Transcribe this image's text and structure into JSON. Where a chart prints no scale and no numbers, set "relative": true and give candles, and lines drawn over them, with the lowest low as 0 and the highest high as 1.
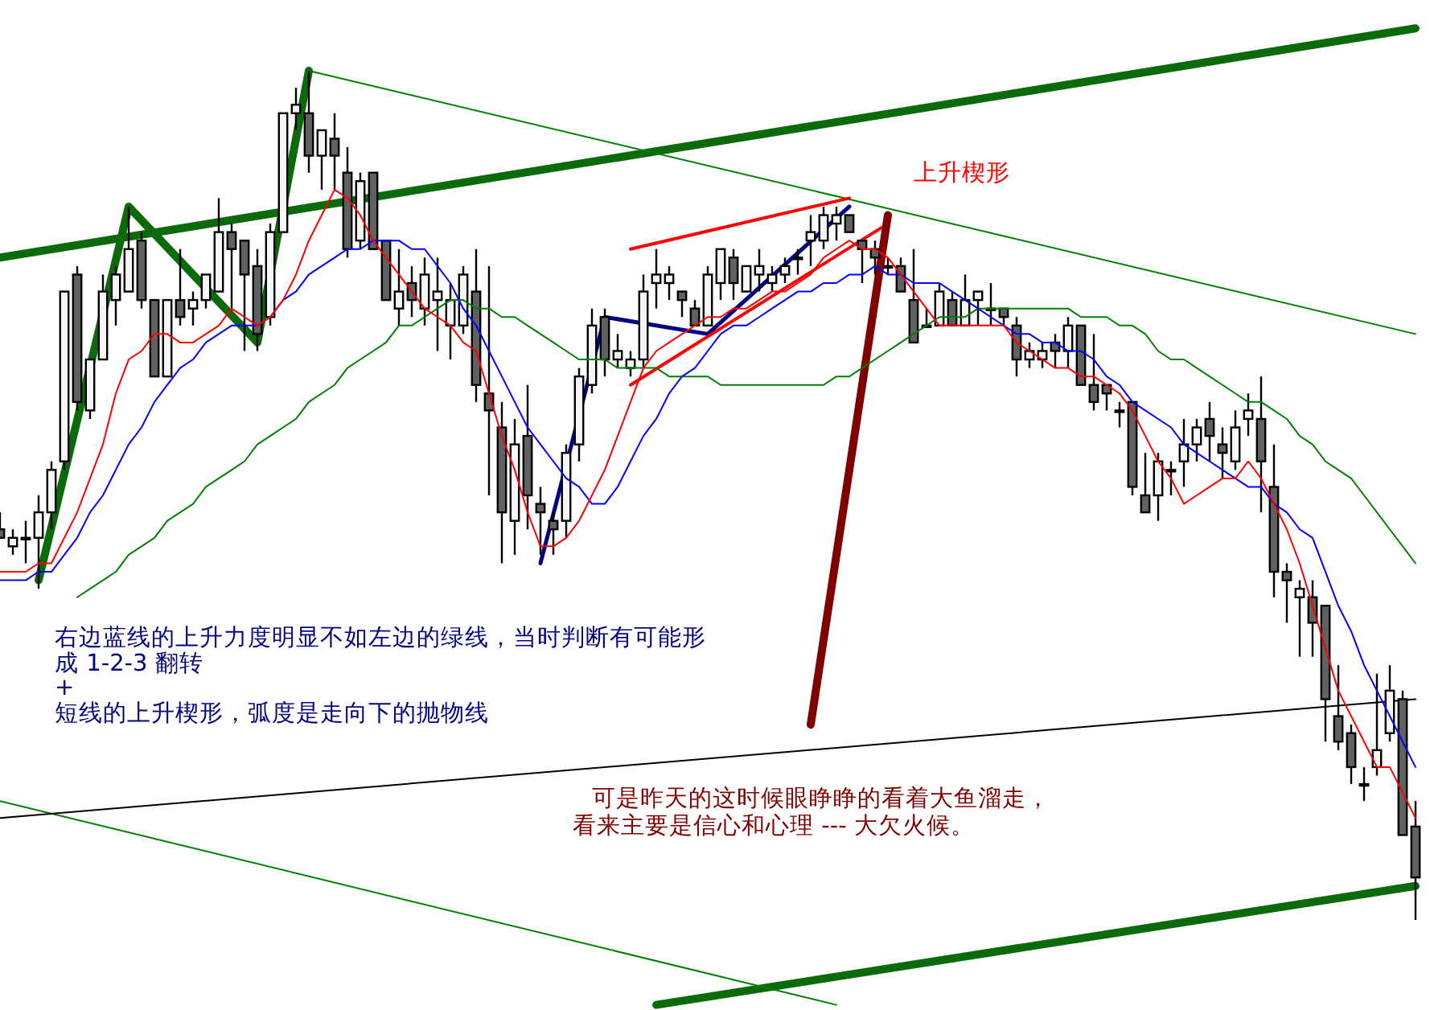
{
  "chart_data": {
    "type": "candlestick",
    "relative": true,
    "categories": [
      null,
      null,
      null,
      null,
      null,
      null,
      null,
      null,
      null,
      null,
      null,
      null,
      null,
      null,
      null,
      null,
      null,
      null,
      null,
      null,
      null,
      null,
      null,
      null,
      null,
      null,
      null,
      null,
      null,
      null,
      null,
      null,
      null,
      null,
      null,
      null,
      null,
      null,
      null,
      null,
      null,
      null,
      null,
      null,
      null,
      null,
      null,
      null,
      null,
      null,
      null,
      null,
      null,
      null,
      null,
      null,
      null,
      null,
      null,
      null,
      null,
      null,
      null,
      null,
      null,
      null,
      null,
      null,
      null,
      null,
      null,
      null,
      null,
      null,
      null,
      null,
      null,
      null,
      null,
      null,
      null,
      null,
      null,
      null,
      null,
      null,
      null,
      null,
      null,
      null,
      null,
      null,
      null,
      null,
      null,
      null,
      null,
      null,
      null,
      null,
      null,
      null,
      null,
      null,
      null,
      null,
      null,
      null,
      null,
      null,
      null
    ],
    "ohlc": [
      [
        0.46,
        0.48,
        0.45,
        0.45
      ],
      [
        0.44,
        0.46,
        0.43,
        0.45
      ],
      [
        0.45,
        0.47,
        0.42,
        0.45
      ],
      [
        0.45,
        0.5,
        0.39,
        0.48
      ],
      [
        0.48,
        0.54,
        0.46,
        0.53
      ],
      [
        0.54,
        0.74,
        0.53,
        0.74
      ],
      [
        0.76,
        0.77,
        0.6,
        0.61
      ],
      [
        0.6,
        0.66,
        0.59,
        0.66
      ],
      [
        0.66,
        0.76,
        0.66,
        0.74
      ],
      [
        0.73,
        0.77,
        0.7,
        0.76
      ],
      [
        0.74,
        0.84,
        0.74,
        0.79
      ],
      [
        0.8,
        0.81,
        0.72,
        0.73
      ],
      [
        0.73,
        0.73,
        0.64,
        0.64
      ],
      [
        0.64,
        0.73,
        0.64,
        0.73
      ],
      [
        0.73,
        0.79,
        0.7,
        0.71
      ],
      [
        0.72,
        0.74,
        0.7,
        0.73
      ],
      [
        0.73,
        0.76,
        0.72,
        0.76
      ],
      [
        0.74,
        0.85,
        0.74,
        0.81
      ],
      [
        0.81,
        0.82,
        0.72,
        0.79
      ],
      [
        0.8,
        0.8,
        0.67,
        0.76
      ],
      [
        0.77,
        0.79,
        0.67,
        0.69
      ],
      [
        0.71,
        0.82,
        0.7,
        0.81
      ],
      [
        0.81,
        0.95,
        0.81,
        0.95
      ],
      [
        0.95,
        0.98,
        0.93,
        0.96
      ],
      [
        0.95,
        1,
        0.88,
        0.9
      ],
      [
        0.9,
        0.93,
        0.86,
        0.93
      ],
      [
        0.92,
        0.95,
        0.86,
        0.9
      ],
      [
        0.88,
        0.91,
        0.78,
        0.79
      ],
      [
        0.8,
        0.88,
        0.79,
        0.87
      ],
      [
        0.88,
        0.88,
        0.79,
        0.79
      ],
      [
        0.8,
        0.8,
        0.73,
        0.73
      ],
      [
        0.72,
        0.79,
        0.7,
        0.74
      ],
      [
        0.75,
        0.77,
        0.71,
        0.73
      ],
      [
        0.72,
        0.78,
        0.7,
        0.76
      ],
      [
        0.73,
        0.78,
        0.67,
        0.74
      ],
      [
        0.7,
        0.75,
        0.66,
        0.73
      ],
      [
        0.7,
        0.77,
        0.69,
        0.76
      ],
      [
        0.74,
        0.79,
        0.61,
        0.63
      ],
      [
        0.62,
        0.77,
        0.5,
        0.6
      ],
      [
        0.58,
        0.61,
        0.42,
        0.48
      ],
      [
        0.47,
        0.59,
        0.43,
        0.56
      ],
      [
        0.57,
        0.63,
        0.46,
        0.5
      ],
      [
        0.49,
        0.51,
        0.43,
        0.48
      ],
      [
        0.47,
        0.48,
        0.43,
        0.46
      ],
      [
        0.47,
        0.56,
        0.45,
        0.55
      ],
      [
        0.56,
        0.65,
        0.54,
        0.64
      ],
      [
        0.63,
        0.72,
        0.62,
        0.7
      ],
      [
        0.71,
        0.72,
        0.64,
        0.66
      ],
      [
        0.66,
        0.69,
        0.65,
        0.67
      ],
      [
        0.65,
        0.67,
        0.64,
        0.66
      ],
      [
        0.66,
        0.76,
        0.65,
        0.74
      ],
      [
        0.75,
        0.79,
        0.72,
        0.76
      ],
      [
        0.75,
        0.77,
        0.73,
        0.76
      ],
      [
        0.74,
        0.74,
        0.71,
        0.73
      ],
      [
        0.72,
        0.73,
        0.7,
        0.7
      ],
      [
        0.7,
        0.77,
        0.7,
        0.76
      ],
      [
        0.75,
        0.79,
        0.73,
        0.79
      ],
      [
        0.78,
        0.79,
        0.73,
        0.75
      ],
      [
        0.74,
        0.77,
        0.74,
        0.77
      ],
      [
        0.76,
        0.79,
        0.74,
        0.77
      ],
      [
        0.75,
        0.77,
        0.74,
        0.76
      ],
      [
        0.76,
        0.78,
        0.75,
        0.77
      ],
      [
        0.78,
        0.79,
        0.76,
        0.78
      ],
      [
        0.8,
        0.83,
        0.77,
        0.81
      ],
      [
        0.8,
        0.84,
        0.79,
        0.83
      ],
      [
        0.82,
        0.84,
        0.8,
        0.83
      ],
      [
        0.83,
        0.83,
        0.81,
        0.81
      ],
      [
        0.8,
        0.8,
        0.75,
        0.79
      ],
      [
        0.79,
        0.8,
        0.76,
        0.78
      ],
      [
        0.77,
        0.78,
        0.76,
        0.77
      ],
      [
        0.77,
        0.78,
        0.74,
        0.74
      ],
      [
        0.73,
        0.79,
        0.68,
        0.68
      ],
      [
        0.7,
        0.72,
        0.7,
        0.7
      ],
      [
        0.7,
        0.75,
        0.7,
        0.74
      ],
      [
        0.73,
        0.74,
        0.7,
        0.7
      ],
      [
        0.7,
        0.76,
        0.7,
        0.73
      ],
      [
        0.73,
        0.74,
        0.7,
        0.74
      ],
      [
        0.72,
        0.75,
        0.7,
        0.72
      ],
      [
        0.72,
        0.72,
        0.7,
        0.71
      ],
      [
        0.7,
        0.71,
        0.64,
        0.66
      ],
      [
        0.66,
        0.68,
        0.65,
        0.67
      ],
      [
        0.66,
        0.68,
        0.65,
        0.67
      ],
      [
        0.68,
        0.69,
        0.65,
        0.67
      ],
      [
        0.67,
        0.71,
        0.65,
        0.7
      ],
      [
        0.7,
        0.7,
        0.63,
        0.63
      ],
      [
        0.63,
        0.69,
        0.6,
        0.61
      ],
      [
        0.63,
        0.63,
        0.6,
        0.62
      ],
      [
        0.6,
        0.61,
        0.58,
        0.6
      ],
      [
        0.61,
        0.61,
        0.5,
        0.51
      ],
      [
        0.5,
        0.55,
        0.48,
        0.48
      ],
      [
        0.5,
        0.55,
        0.47,
        0.54
      ],
      [
        0.53,
        0.54,
        0.5,
        0.53
      ],
      [
        0.54,
        0.59,
        0.51,
        0.56
      ],
      [
        0.56,
        0.59,
        0.54,
        0.58
      ],
      [
        0.59,
        0.61,
        0.54,
        0.57
      ],
      [
        0.56,
        0.58,
        0.52,
        0.55
      ],
      [
        0.54,
        0.6,
        0.53,
        0.58
      ],
      [
        0.59,
        0.62,
        0.57,
        0.6
      ],
      [
        0.59,
        0.64,
        0.48,
        0.54
      ],
      [
        0.51,
        0.56,
        0.38,
        0.41
      ],
      [
        0.41,
        0.42,
        0.35,
        0.4
      ],
      [
        0.38,
        0.4,
        0.31,
        0.39
      ],
      [
        0.38,
        0.4,
        0.31,
        0.35
      ],
      [
        0.37,
        0.37,
        0.21,
        0.26
      ],
      [
        0.24,
        0.3,
        0.2,
        0.21
      ],
      [
        0.22,
        0.23,
        0.16,
        0.18
      ],
      [
        0.16,
        0.18,
        0.14,
        0.16
      ],
      [
        0.18,
        0.29,
        0.17,
        0.2
      ],
      [
        0.22,
        0.3,
        0.21,
        0.27
      ],
      [
        0.26,
        0.27,
        0.1,
        0.1
      ],
      [
        0.11,
        0.14,
        0,
        0.05
      ]
    ],
    "series": [
      {
        "type": "line",
        "color": "#008000",
        "values": [
          null,
          null,
          null,
          null,
          null,
          null,
          0.38,
          0.39,
          0.4,
          0.41,
          0.43,
          0.44,
          0.45,
          0.47,
          0.48,
          0.49,
          0.51,
          0.52,
          0.53,
          0.54,
          0.56,
          0.57,
          0.58,
          0.59,
          0.61,
          0.62,
          0.63,
          0.65,
          0.66,
          0.67,
          0.68,
          0.7,
          0.7,
          0.71,
          0.72,
          0.73,
          0.73,
          0.72,
          0.72,
          0.71,
          0.71,
          0.7,
          0.69,
          0.68,
          0.67,
          0.66,
          0.66,
          0.66,
          0.65,
          0.65,
          0.65,
          0.65,
          0.64,
          0.64,
          0.64,
          0.64,
          0.63,
          0.63,
          0.63,
          0.63,
          0.63,
          0.63,
          0.63,
          0.63,
          0.63,
          0.64,
          0.64,
          0.65,
          0.66,
          0.67,
          0.68,
          0.69,
          0.7,
          0.71,
          0.71,
          0.71,
          0.72,
          0.72,
          0.72,
          0.72,
          0.72,
          0.72,
          0.72,
          0.72,
          0.71,
          0.71,
          0.71,
          0.7,
          0.7,
          0.69,
          0.67,
          0.66,
          0.66,
          0.65,
          0.64,
          0.63,
          0.62,
          0.61,
          0.61,
          0.6,
          0.59,
          0.57,
          0.56,
          0.54,
          0.53,
          0.52,
          0.5,
          0.48,
          0.46,
          0.44,
          0.42
        ]
      },
      {
        "type": "line",
        "color": "#0000ff",
        "values": [
          0.4,
          0.4,
          0.4,
          0.41,
          0.41,
          0.43,
          0.45,
          0.48,
          0.5,
          0.53,
          0.56,
          0.58,
          0.61,
          0.63,
          0.65,
          0.66,
          0.68,
          0.69,
          0.7,
          0.7,
          0.7,
          0.71,
          0.73,
          0.74,
          0.76,
          0.77,
          0.78,
          0.79,
          0.79,
          0.8,
          0.8,
          0.8,
          0.79,
          0.79,
          0.77,
          0.75,
          0.72,
          0.7,
          0.67,
          0.64,
          0.61,
          0.58,
          0.56,
          0.54,
          0.52,
          0.51,
          0.49,
          0.49,
          0.51,
          0.54,
          0.57,
          0.59,
          0.62,
          0.64,
          0.65,
          0.67,
          0.69,
          0.7,
          0.7,
          0.71,
          0.72,
          0.73,
          0.74,
          0.74,
          0.75,
          0.75,
          0.76,
          0.76,
          0.77,
          0.76,
          0.76,
          0.75,
          0.75,
          0.75,
          0.74,
          0.73,
          0.72,
          0.71,
          0.7,
          0.69,
          0.69,
          0.68,
          0.68,
          0.67,
          0.67,
          0.66,
          0.64,
          0.63,
          0.61,
          0.6,
          0.59,
          0.58,
          0.56,
          0.55,
          0.54,
          0.53,
          0.52,
          0.51,
          0.51,
          0.49,
          0.48,
          0.46,
          0.45,
          0.41,
          0.37,
          0.34,
          0.3,
          0.27,
          0.24,
          0.21,
          0.18
        ]
      },
      {
        "type": "line",
        "color": "#ff0000",
        "values": [
          0.41,
          0.41,
          0.41,
          0.42,
          0.42,
          0.45,
          0.48,
          0.52,
          0.56,
          0.62,
          0.66,
          0.67,
          0.69,
          0.69,
          0.68,
          0.68,
          0.69,
          0.7,
          0.72,
          0.71,
          0.7,
          0.71,
          0.73,
          0.76,
          0.8,
          0.83,
          0.86,
          0.85,
          0.83,
          0.8,
          0.78,
          0.76,
          0.74,
          0.72,
          0.71,
          0.7,
          0.68,
          0.67,
          0.62,
          0.57,
          0.53,
          0.48,
          0.44,
          0.44,
          0.45,
          0.47,
          0.5,
          0.53,
          0.57,
          0.61,
          0.65,
          0.67,
          0.68,
          0.69,
          0.7,
          0.71,
          0.71,
          0.72,
          0.72,
          0.73,
          0.74,
          0.74,
          0.75,
          0.76,
          0.78,
          0.79,
          0.8,
          0.79,
          0.79,
          0.78,
          0.76,
          0.74,
          0.72,
          0.7,
          0.7,
          0.7,
          0.7,
          0.7,
          0.7,
          0.68,
          0.67,
          0.66,
          0.65,
          0.65,
          0.64,
          0.64,
          0.63,
          0.62,
          0.6,
          0.57,
          0.54,
          0.52,
          0.49,
          0.5,
          0.51,
          0.52,
          0.52,
          0.54,
          0.52,
          0.49,
          0.46,
          0.42,
          0.37,
          0.32,
          0.27,
          0.24,
          0.21,
          0.18,
          0.18,
          0.15,
          0.12
        ]
      },
      {
        "type": "line",
        "color": "#0b6b0b",
        "values": [
          0.78,
          null,
          null,
          null,
          null,
          null,
          null,
          null,
          null,
          null,
          null,
          null,
          null,
          null,
          null,
          null,
          null,
          null,
          null,
          null,
          null,
          null,
          null,
          null,
          null,
          null,
          null,
          null,
          null,
          null,
          null,
          null,
          null,
          null,
          null,
          null,
          null,
          null,
          null,
          null,
          null,
          null,
          null,
          null,
          null,
          null,
          null,
          null,
          null,
          null,
          null,
          null,
          null,
          null,
          null,
          null,
          null,
          null,
          null,
          null,
          null,
          null,
          null,
          null,
          null,
          null,
          null,
          null,
          null,
          null,
          null,
          null,
          null,
          null,
          null,
          null,
          null,
          null,
          null,
          null,
          null,
          null,
          null,
          null,
          null,
          null,
          null,
          null,
          null,
          null,
          null,
          null,
          null,
          null,
          null,
          null,
          null,
          null,
          null,
          null,
          null,
          null,
          null,
          null,
          null,
          null,
          null,
          null,
          null,
          null,
          1.05
        ]
      },
      {
        "type": "line",
        "color": "#0b6b0b",
        "values": [
          null,
          null,
          null,
          null,
          null,
          null,
          null,
          null,
          null,
          null,
          null,
          null,
          null,
          null,
          null,
          null,
          null,
          null,
          null,
          null,
          null,
          null,
          null,
          null,
          null,
          null,
          null,
          null,
          null,
          null,
          null,
          null,
          null,
          null,
          null,
          null,
          null,
          null,
          null,
          null,
          null,
          null,
          null,
          null,
          null,
          null,
          null,
          null,
          null,
          null,
          null,
          -0.1,
          null,
          null,
          null,
          null,
          null,
          null,
          null,
          null,
          null,
          null,
          null,
          null,
          null,
          null,
          null,
          null,
          null,
          null,
          null,
          null,
          null,
          null,
          null,
          null,
          null,
          null,
          null,
          null,
          null,
          null,
          null,
          null,
          null,
          null,
          null,
          null,
          null,
          null,
          null,
          null,
          null,
          null,
          null,
          null,
          null,
          null,
          null,
          null,
          null,
          null,
          null,
          null,
          null,
          null,
          null,
          null,
          null,
          null,
          0.04
        ]
      },
      {
        "type": "line",
        "color": "#008000",
        "values": [
          null,
          null,
          null,
          null,
          null,
          null,
          null,
          null,
          null,
          null,
          null,
          null,
          null,
          null,
          null,
          null,
          null,
          null,
          null,
          null,
          null,
          null,
          null,
          null,
          1,
          null,
          null,
          null,
          null,
          null,
          null,
          null,
          null,
          null,
          null,
          null,
          null,
          null,
          null,
          null,
          null,
          null,
          null,
          null,
          null,
          null,
          null,
          null,
          null,
          null,
          null,
          null,
          null,
          null,
          null,
          null,
          null,
          null,
          null,
          null,
          null,
          null,
          null,
          null,
          null,
          null,
          null,
          null,
          null,
          null,
          null,
          null,
          null,
          null,
          null,
          null,
          null,
          null,
          null,
          null,
          null,
          null,
          null,
          null,
          null,
          null,
          null,
          null,
          null,
          null,
          null,
          null,
          null,
          null,
          null,
          null,
          null,
          null,
          null,
          null,
          null,
          null,
          null,
          null,
          null,
          null,
          null,
          null,
          null,
          null,
          0.69
        ]
      },
      {
        "type": "line",
        "color": "#008000",
        "values": [
          0.14,
          null,
          null,
          null,
          null,
          null,
          null,
          null,
          null,
          null,
          null,
          null,
          null,
          null,
          null,
          null,
          null,
          null,
          null,
          null,
          null,
          null,
          null,
          null,
          null,
          null,
          null,
          null,
          null,
          null,
          null,
          null,
          null,
          null,
          null,
          null,
          null,
          null,
          null,
          null,
          null,
          null,
          null,
          null,
          null,
          null,
          null,
          null,
          null,
          null,
          null,
          null,
          null,
          null,
          null,
          null,
          null,
          null,
          null,
          null,
          null,
          null,
          null,
          null,
          null,
          -0.1,
          null,
          null,
          null,
          null,
          null,
          null,
          null,
          null,
          null,
          null,
          null,
          null,
          null,
          null,
          null,
          null,
          null,
          null,
          null,
          null,
          null,
          null,
          null,
          null,
          null,
          null,
          null,
          null,
          null,
          null,
          null,
          null,
          null,
          null,
          null,
          null,
          null,
          null,
          null,
          null,
          null,
          null,
          null,
          null,
          null
        ]
      },
      {
        "type": "line",
        "color": "#000000",
        "values": [
          0.12,
          null,
          null,
          null,
          null,
          null,
          null,
          null,
          null,
          null,
          null,
          null,
          null,
          null,
          null,
          null,
          null,
          null,
          null,
          null,
          null,
          null,
          null,
          null,
          null,
          null,
          null,
          null,
          null,
          null,
          null,
          null,
          null,
          null,
          null,
          null,
          null,
          null,
          null,
          null,
          null,
          null,
          null,
          null,
          null,
          null,
          null,
          null,
          null,
          null,
          null,
          null,
          null,
          null,
          null,
          null,
          null,
          null,
          null,
          null,
          null,
          null,
          null,
          null,
          null,
          null,
          null,
          null,
          null,
          null,
          null,
          null,
          null,
          null,
          null,
          null,
          null,
          null,
          null,
          null,
          null,
          null,
          null,
          null,
          null,
          null,
          null,
          null,
          null,
          null,
          null,
          null,
          null,
          null,
          null,
          null,
          null,
          null,
          null,
          null,
          null,
          null,
          null,
          null,
          null,
          null,
          null,
          null,
          null,
          null,
          0.26
        ]
      },
      {
        "type": "line",
        "color": "#0b6b0b",
        "values": [
          null,
          null,
          null,
          0.4,
          null,
          null,
          null,
          null,
          null,
          null,
          0.84,
          null,
          null,
          null,
          null,
          null,
          null,
          null,
          null,
          null,
          0.68,
          null,
          null,
          null,
          1,
          null,
          null,
          null,
          null,
          null,
          null,
          null,
          null,
          null,
          null,
          null,
          null,
          null,
          null,
          null,
          null,
          null,
          null,
          null,
          null,
          null,
          null,
          null,
          null,
          null,
          null,
          null,
          null,
          null,
          null,
          null,
          null,
          null,
          null,
          null,
          null,
          null,
          null,
          null,
          null,
          null,
          null,
          null,
          null,
          null,
          null,
          null,
          null,
          null,
          null,
          null,
          null,
          null,
          null,
          null,
          null,
          null,
          null,
          null,
          null,
          null,
          null,
          null,
          null,
          null,
          null,
          null,
          null,
          null,
          null,
          null,
          null,
          null,
          null,
          null,
          null,
          null,
          null,
          null,
          null,
          null,
          null,
          null,
          null,
          null,
          null
        ]
      },
      {
        "type": "line",
        "color": "#000080",
        "values": [
          null,
          null,
          null,
          null,
          null,
          null,
          null,
          null,
          null,
          null,
          null,
          null,
          null,
          null,
          null,
          null,
          null,
          null,
          null,
          null,
          null,
          null,
          null,
          null,
          null,
          null,
          null,
          null,
          null,
          null,
          null,
          null,
          null,
          null,
          null,
          null,
          null,
          null,
          null,
          null,
          null,
          null,
          0.42,
          null,
          null,
          null,
          null,
          0.71,
          null,
          null,
          null,
          null,
          null,
          null,
          null,
          0.69,
          null,
          null,
          null,
          null,
          null,
          null,
          null,
          null,
          null,
          null,
          0.84,
          null,
          null,
          null,
          null,
          null,
          null,
          null,
          null,
          null,
          null,
          null,
          null,
          null,
          null,
          null,
          null,
          null,
          null,
          null,
          null,
          null,
          null,
          null,
          null,
          null,
          null,
          null,
          null,
          null,
          null,
          null,
          null,
          null,
          null,
          null,
          null,
          null,
          null,
          null,
          null,
          null,
          null,
          null,
          null
        ]
      },
      {
        "type": "line",
        "color": "#ff0000",
        "values": [
          null,
          null,
          null,
          null,
          null,
          null,
          null,
          null,
          null,
          null,
          null,
          null,
          null,
          null,
          null,
          null,
          null,
          null,
          null,
          null,
          null,
          null,
          null,
          null,
          null,
          null,
          null,
          null,
          null,
          null,
          null,
          null,
          null,
          null,
          null,
          null,
          null,
          null,
          null,
          null,
          null,
          null,
          null,
          null,
          null,
          null,
          null,
          null,
          null,
          0.79,
          null,
          null,
          null,
          null,
          null,
          null,
          null,
          null,
          null,
          null,
          null,
          null,
          null,
          null,
          null,
          null,
          0.85,
          null,
          null,
          null,
          null,
          null,
          null,
          null,
          null,
          null,
          null,
          null,
          null,
          null,
          null,
          null,
          null,
          null,
          null,
          null,
          null,
          null,
          null,
          null,
          null,
          null,
          null,
          null,
          null,
          null,
          null,
          null,
          null,
          null,
          null,
          null,
          null,
          null,
          null,
          null,
          null,
          null,
          null,
          null,
          null
        ]
      },
      {
        "type": "line",
        "color": "#ff0000",
        "values": [
          null,
          null,
          null,
          null,
          null,
          null,
          null,
          null,
          null,
          null,
          null,
          null,
          null,
          null,
          null,
          null,
          null,
          null,
          null,
          null,
          null,
          null,
          null,
          null,
          null,
          null,
          null,
          null,
          null,
          null,
          null,
          null,
          null,
          null,
          null,
          null,
          null,
          null,
          null,
          null,
          null,
          null,
          null,
          null,
          null,
          null,
          null,
          null,
          null,
          0.63,
          null,
          null,
          null,
          null,
          null,
          null,
          null,
          null,
          null,
          null,
          null,
          null,
          null,
          null,
          null,
          null,
          null,
          null,
          null,
          0.82,
          null,
          null,
          null,
          null,
          null,
          null,
          null,
          null,
          null,
          null,
          null,
          null,
          null,
          null,
          null,
          null,
          null,
          null,
          null,
          null,
          null,
          null,
          null,
          null,
          null,
          null,
          null,
          null,
          null,
          null,
          null,
          null,
          null,
          null,
          null,
          null,
          null,
          null,
          null,
          null,
          null
        ]
      },
      {
        "type": "line",
        "color": "#800000",
        "values": [
          null,
          null,
          null,
          null,
          null,
          null,
          null,
          null,
          null,
          null,
          null,
          null,
          null,
          null,
          null,
          null,
          null,
          null,
          null,
          null,
          null,
          null,
          null,
          null,
          null,
          null,
          null,
          null,
          null,
          null,
          null,
          null,
          null,
          null,
          null,
          null,
          null,
          null,
          null,
          null,
          null,
          null,
          null,
          null,
          null,
          null,
          null,
          null,
          null,
          null,
          null,
          null,
          null,
          null,
          null,
          null,
          null,
          null,
          null,
          null,
          null,
          null,
          null,
          0.23,
          null,
          null,
          null,
          null,
          null,
          0.83,
          null,
          null,
          null,
          null,
          null,
          null,
          null,
          null,
          null,
          null,
          null,
          null,
          null,
          null,
          null,
          null,
          null,
          null,
          null,
          null,
          null,
          null,
          null,
          null,
          null,
          null,
          null,
          null,
          null,
          null,
          null,
          null,
          null,
          null,
          null,
          null,
          null,
          null,
          null,
          null,
          null
        ]
      }
    ],
    "annotations": [
      "右边蓝线的上升力度明显不如左边的绿线，当时判断有可能形",
      "成  1-2-3 翻转",
      "+",
      "短线的上升楔形，弧度是走向下的抛物线",
      "可是昨天的这时候眼睁睁的看着大鱼溜走，",
      "看来主要是信心和心理  ---  大欠火候。",
      "上升楔形"
    ]
  }
}
